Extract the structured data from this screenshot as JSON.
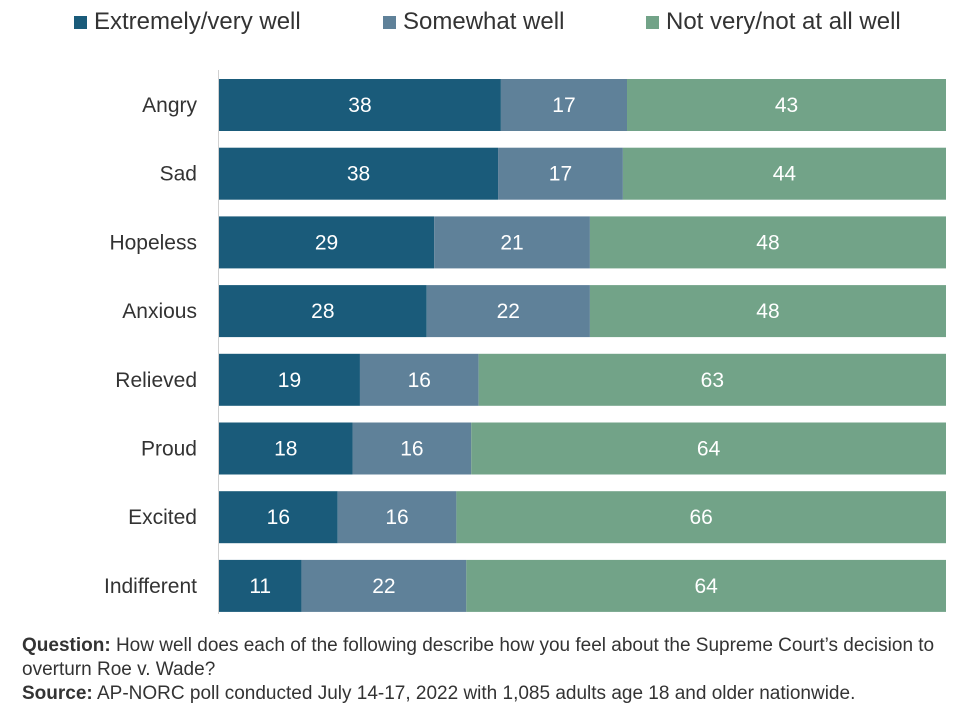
{
  "chart_data": {
    "type": "bar",
    "orientation": "horizontal",
    "stacked": true,
    "categories": [
      "Angry",
      "Sad",
      "Hopeless",
      "Anxious",
      "Relieved",
      "Proud",
      "Excited",
      "Indifferent"
    ],
    "series": [
      {
        "name": "Extremely/very well",
        "color": "#1a5b7a",
        "values": [
          38,
          38,
          29,
          28,
          19,
          18,
          16,
          11
        ]
      },
      {
        "name": "Somewhat well",
        "color": "#5f8199",
        "values": [
          17,
          17,
          21,
          22,
          16,
          16,
          16,
          22
        ]
      },
      {
        "name": "Not very/not at all well",
        "color": "#72a388",
        "values": [
          43,
          44,
          48,
          48,
          63,
          64,
          66,
          64
        ]
      }
    ],
    "legend_position": "top",
    "grid": false
  },
  "notes": {
    "question_label": "Question:",
    "question_text": " How well does each of the following describe how you feel about the Supreme Court’s decision to overturn Roe v. Wade?",
    "source_label": "Source:",
    "source_text": " AP-NORC poll conducted July 14-17, 2022 with 1,085 adults age 18 and older nationwide."
  }
}
